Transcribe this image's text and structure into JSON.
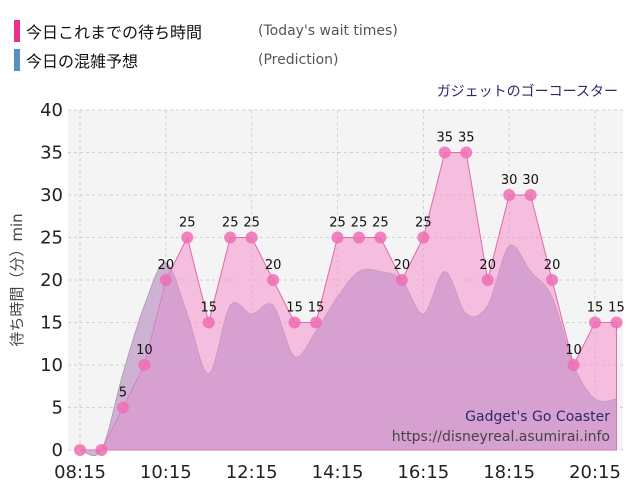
{
  "legend": {
    "actual": {
      "label_jp": "今日これまでの待ち時間",
      "label_en": "(Today's wait times)",
      "color": "#e8318a"
    },
    "predicted": {
      "label_jp": "今日の混雑予想",
      "label_en": "(Prediction)",
      "color": "#5a8fc0"
    }
  },
  "chart_data": {
    "type": "area",
    "title": "ガジェットのゴーコースター",
    "ylabel": "待ち時間（分）min",
    "xlabel": "",
    "ylim": [
      0,
      40
    ],
    "yticks": [
      0,
      5,
      10,
      15,
      20,
      25,
      30,
      35,
      40
    ],
    "xticks": [
      "08:15",
      "10:15",
      "12:15",
      "14:15",
      "16:15",
      "18:15",
      "20:15"
    ],
    "grid": true,
    "watermark": {
      "name": "Gadget's Go Coaster",
      "url": "https://disneyreal.asumirai.info"
    },
    "series": [
      {
        "name": "今日これまでの待ち時間",
        "x": [
          "08:15",
          "08:45",
          "09:15",
          "09:45",
          "10:15",
          "10:45",
          "11:15",
          "11:45",
          "12:15",
          "12:45",
          "13:15",
          "13:45",
          "14:15",
          "14:45",
          "15:15",
          "15:45",
          "16:15",
          "16:45",
          "17:15",
          "17:45",
          "18:15",
          "18:45",
          "19:15",
          "19:45",
          "20:15",
          "20:45"
        ],
        "values": [
          0,
          0,
          5,
          10,
          20,
          25,
          15,
          25,
          25,
          20,
          15,
          15,
          25,
          25,
          25,
          20,
          25,
          35,
          35,
          20,
          30,
          30,
          20,
          10,
          15,
          15
        ]
      },
      {
        "name": "今日の混雑予想",
        "x": [
          "08:15",
          "08:45",
          "09:15",
          "09:45",
          "10:15",
          "10:45",
          "11:15",
          "11:45",
          "12:15",
          "12:45",
          "13:15",
          "13:45",
          "14:15",
          "14:45",
          "15:15",
          "15:45",
          "16:15",
          "16:45",
          "17:15",
          "17:45",
          "18:15",
          "18:45",
          "19:15",
          "19:45",
          "20:15",
          "20:45"
        ],
        "values": [
          0,
          0,
          9,
          17,
          22,
          16,
          9,
          17,
          16,
          17,
          11,
          14,
          18,
          21,
          21,
          20,
          16,
          21,
          16,
          17,
          24,
          21,
          18,
          10,
          6,
          6
        ]
      }
    ]
  }
}
